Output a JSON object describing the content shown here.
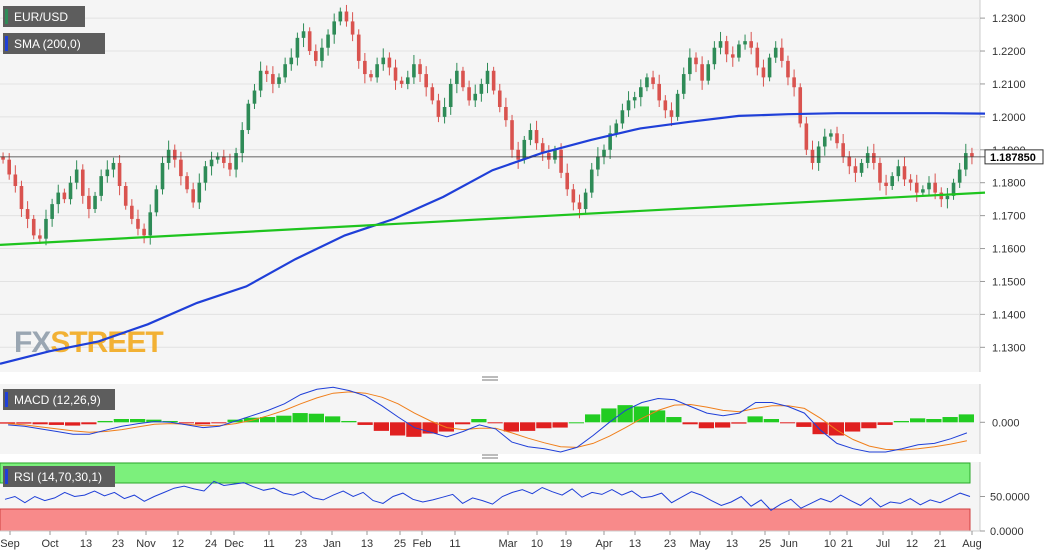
{
  "chart_data": [
    {
      "type": "candlestick",
      "panel": "price",
      "symbol": "EUR/USD",
      "indicator_label": "SMA (200,0)",
      "current_price_label": "1.187850",
      "current_price": 1.18785,
      "ylim": [
        1.1225,
        1.2355
      ],
      "y_ticks": [
        "1.2300",
        "1.2200",
        "1.2100",
        "1.2000",
        "1.1900",
        "1.1800",
        "1.1700",
        "1.1600",
        "1.1500",
        "1.1400",
        "1.1300"
      ],
      "x_ticks": [
        "Sep",
        "Oct",
        "13",
        "23",
        "Nov",
        "12",
        "24",
        "Dec",
        "11",
        "23",
        "Jan",
        "13",
        "25",
        "Feb",
        "11",
        "Mar",
        "10",
        "19",
        "Apr",
        "13",
        "23",
        "May",
        "13",
        "25",
        "Jun",
        "10",
        "21",
        "Jul",
        "12",
        "21",
        "Aug"
      ],
      "closes": [
        1.187,
        1.1825,
        1.179,
        1.172,
        1.169,
        1.164,
        1.163,
        1.169,
        1.1735,
        1.177,
        1.175,
        1.18,
        1.184,
        1.176,
        1.172,
        1.176,
        1.182,
        1.184,
        1.186,
        1.179,
        1.173,
        1.169,
        1.166,
        1.164,
        1.171,
        1.178,
        1.186,
        1.19,
        1.187,
        1.182,
        1.178,
        1.174,
        1.18,
        1.185,
        1.187,
        1.188,
        1.186,
        1.184,
        1.189,
        1.196,
        1.204,
        1.208,
        1.214,
        1.213,
        1.21,
        1.212,
        1.216,
        1.218,
        1.224,
        1.226,
        1.22,
        1.217,
        1.221,
        1.225,
        1.229,
        1.232,
        1.229,
        1.225,
        1.217,
        1.213,
        1.212,
        1.216,
        1.218,
        1.215,
        1.211,
        1.21,
        1.212,
        1.216,
        1.213,
        1.209,
        1.205,
        1.2,
        1.203,
        1.21,
        1.214,
        1.209,
        1.205,
        1.207,
        1.21,
        1.214,
        1.208,
        1.203,
        1.199,
        1.19,
        1.187,
        1.193,
        1.196,
        1.192,
        1.189,
        1.187,
        1.19,
        1.183,
        1.178,
        1.174,
        1.172,
        1.177,
        1.184,
        1.188,
        1.19,
        1.195,
        1.198,
        1.202,
        1.205,
        1.206,
        1.209,
        1.212,
        1.21,
        1.205,
        1.202,
        1.2,
        1.207,
        1.213,
        1.218,
        1.216,
        1.211,
        1.216,
        1.221,
        1.223,
        1.219,
        1.218,
        1.222,
        1.223,
        1.221,
        1.215,
        1.212,
        1.218,
        1.221,
        1.217,
        1.212,
        1.209,
        1.198,
        1.19,
        1.186,
        1.191,
        1.194,
        1.195,
        1.192,
        1.188,
        1.185,
        1.183,
        1.186,
        1.189,
        1.186,
        1.18,
        1.179,
        1.182,
        1.185,
        1.181,
        1.18,
        1.177,
        1.178,
        1.18,
        1.177,
        1.175,
        1.176,
        1.18,
        1.184,
        1.189,
        1.188
      ],
      "series": [
        {
          "name": "SMA (200,0)",
          "color": "#1f3fd8",
          "x_frac": [
            0,
            0.05,
            0.1,
            0.15,
            0.2,
            0.25,
            0.3,
            0.35,
            0.4,
            0.45,
            0.5,
            0.55,
            0.6,
            0.65,
            0.7,
            0.75,
            0.8,
            0.85,
            0.9,
            0.95,
            1.0
          ],
          "values": [
            1.125,
            1.1288,
            1.1318,
            1.137,
            1.1435,
            1.1485,
            1.1568,
            1.164,
            1.169,
            1.1757,
            1.1838,
            1.189,
            1.193,
            1.1965,
            1.1985,
            1.2003,
            1.2008,
            1.2011,
            1.2011,
            1.2011,
            1.201
          ]
        },
        {
          "name": "Trendline",
          "color": "#1ec41e",
          "x_frac": [
            0,
            1.0
          ],
          "values": [
            1.1611,
            1.177
          ]
        }
      ],
      "colors": {
        "up": "#2e8b57",
        "down": "#d9534f"
      }
    },
    {
      "type": "macd",
      "panel": "macd",
      "label": "MACD (12,26,9)",
      "y_tick": "0.000",
      "ylim": [
        -0.0048,
        0.0058
      ],
      "macd": [
        -0.0004,
        -0.0006,
        -0.001,
        -0.0014,
        -0.0018,
        -0.0018,
        -0.0012,
        -0.0006,
        -0.0002,
        0.0001,
        0.0,
        -0.0004,
        -0.0008,
        -0.0006,
        0.0002,
        0.001,
        0.0018,
        0.0028,
        0.0042,
        0.005,
        0.0053,
        0.0048,
        0.004,
        0.0025,
        0.0008,
        -0.0008,
        -0.0015,
        -0.0022,
        -0.0014,
        -0.0004,
        -0.001,
        -0.003,
        -0.0037,
        -0.004,
        -0.0045,
        -0.0038,
        -0.002,
        0.0,
        0.0018,
        0.003,
        0.0036,
        0.0034,
        0.0024,
        0.0014,
        0.001,
        0.0014,
        0.003,
        0.003,
        0.0024,
        0.0014,
        -0.0012,
        -0.0032,
        -0.004,
        -0.0045,
        -0.0045,
        -0.004,
        -0.0034,
        -0.0032,
        -0.0025,
        -0.0016
      ],
      "signal": [
        -0.0002,
        -0.0004,
        -0.0007,
        -0.001,
        -0.0013,
        -0.0015,
        -0.0014,
        -0.0011,
        -0.0007,
        -0.0003,
        -0.0002,
        -0.0003,
        -0.0005,
        -0.0005,
        -0.0002,
        0.0003,
        0.001,
        0.0018,
        0.0028,
        0.0037,
        0.0044,
        0.0046,
        0.0044,
        0.0038,
        0.0028,
        0.0014,
        0.0002,
        -0.0008,
        -0.0011,
        -0.0009,
        -0.0009,
        -0.0016,
        -0.0024,
        -0.0031,
        -0.0037,
        -0.0038,
        -0.0032,
        -0.0021,
        -0.0008,
        0.0006,
        0.0018,
        0.0026,
        0.0027,
        0.0023,
        0.0018,
        0.0016,
        0.0021,
        0.0025,
        0.0025,
        0.0021,
        0.0006,
        -0.0012,
        -0.0026,
        -0.0036,
        -0.0041,
        -0.0042,
        -0.004,
        -0.0037,
        -0.0033,
        -0.0028
      ],
      "colors": {
        "macd": "#1f3fd8",
        "signal": "#f07f1b",
        "hist_up": "#22cc22",
        "hist_down": "#e02020"
      }
    },
    {
      "type": "rsi",
      "panel": "rsi",
      "label": "RSI (14,70,30,1)",
      "y_ticks": [
        "50.0000",
        "0.0000"
      ],
      "ylim": [
        0,
        100
      ],
      "overbought": 70,
      "oversold": 30,
      "values": [
        46,
        50,
        41,
        50,
        44,
        48,
        56,
        50,
        52,
        58,
        51,
        56,
        47,
        52,
        43,
        50,
        56,
        62,
        65,
        61,
        58,
        72,
        66,
        68,
        70,
        64,
        59,
        62,
        55,
        52,
        57,
        48,
        45,
        52,
        58,
        50,
        56,
        44,
        40,
        50,
        55,
        46,
        42,
        45,
        49,
        53,
        40,
        48,
        44,
        39,
        50,
        56,
        60,
        54,
        63,
        57,
        52,
        61,
        49,
        56,
        53,
        60,
        52,
        58,
        48,
        50,
        55,
        41,
        49,
        57,
        52,
        44,
        37,
        42,
        50,
        36,
        45,
        30,
        39,
        46,
        33,
        40,
        47,
        42,
        52,
        44,
        37,
        48,
        35,
        42,
        40,
        47,
        38,
        45,
        41,
        48,
        55,
        50
      ]
    }
  ],
  "watermark": "FXSTREET"
}
